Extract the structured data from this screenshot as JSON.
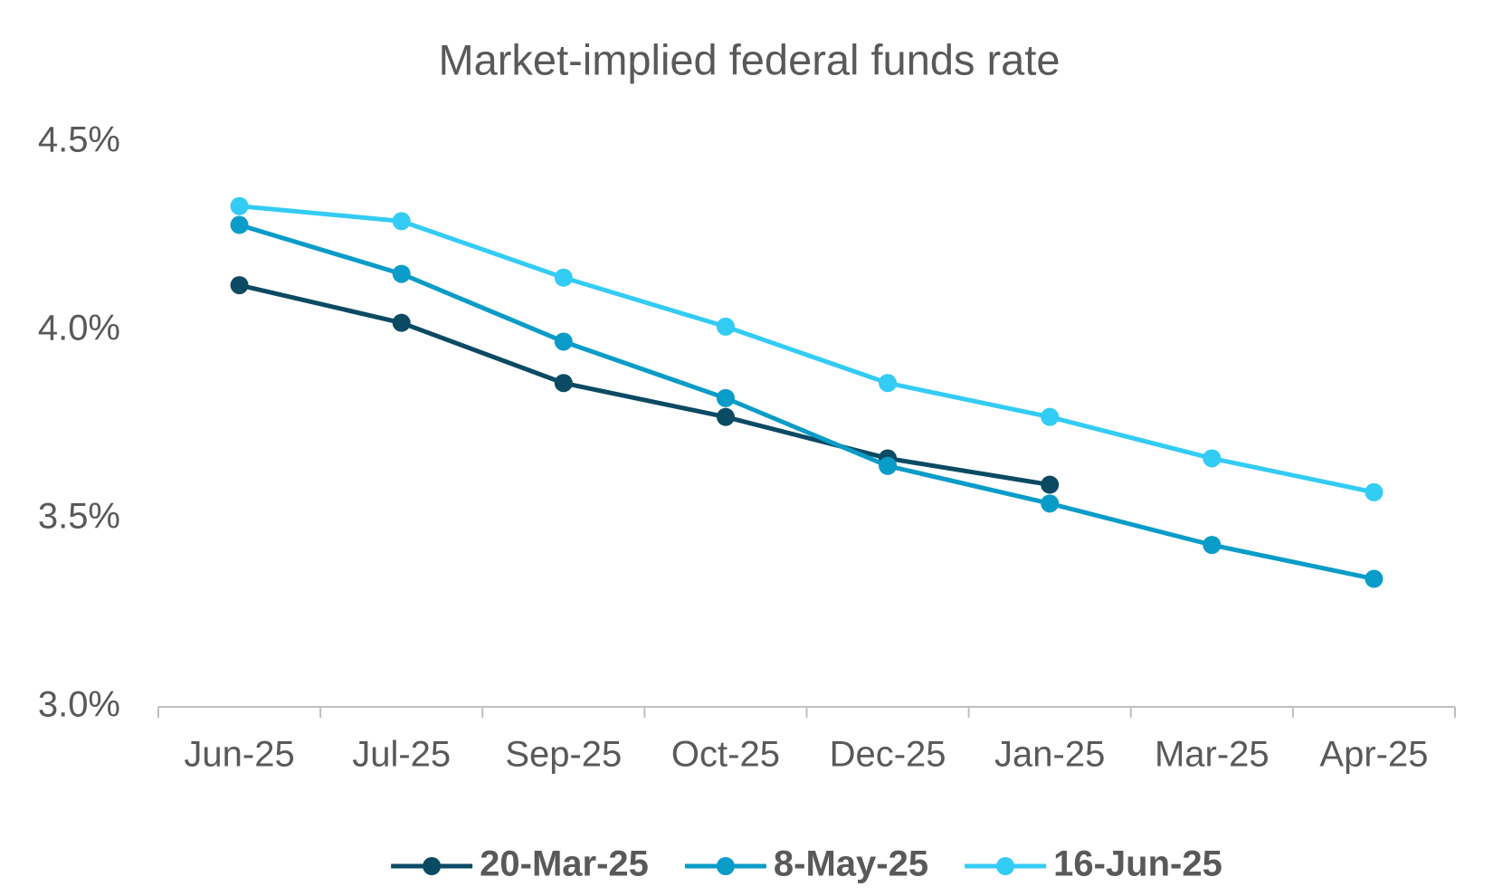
{
  "chart_data": {
    "type": "line",
    "title": "Market-implied federal funds rate",
    "categories": [
      "Jun-25",
      "Jul-25",
      "Sep-25",
      "Oct-25",
      "Dec-25",
      "Jan-25",
      "Mar-25",
      "Apr-25"
    ],
    "series": [
      {
        "name": "20-Mar-25",
        "color": "#0b4a63",
        "values": [
          4.12,
          4.02,
          3.86,
          3.77,
          3.66,
          3.59,
          null,
          null
        ]
      },
      {
        "name": "8-May-25",
        "color": "#0a9cc8",
        "values": [
          4.28,
          4.15,
          3.97,
          3.82,
          3.64,
          3.54,
          3.43,
          3.34
        ]
      },
      {
        "name": "16-Jun-25",
        "color": "#33ccf5",
        "values": [
          4.33,
          4.29,
          4.14,
          4.01,
          3.86,
          3.77,
          3.66,
          3.57
        ]
      }
    ],
    "ylim": [
      3.0,
      4.5
    ],
    "yticks": [
      {
        "value": 3.0,
        "label": "3.0%"
      },
      {
        "value": 3.5,
        "label": "3.5%"
      },
      {
        "value": 4.0,
        "label": "4.0%"
      },
      {
        "value": 4.5,
        "label": "4.5%"
      }
    ],
    "grid": false,
    "legend": "bottom"
  }
}
